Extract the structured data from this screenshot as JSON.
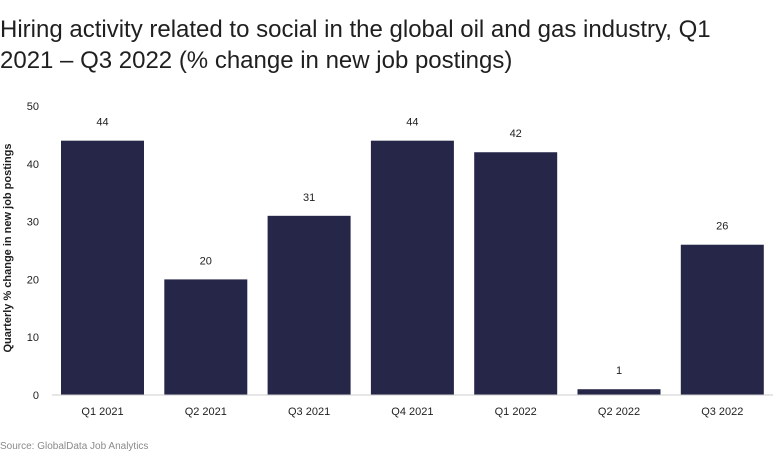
{
  "title": "Hiring activity related to social in the global oil and gas industry, Q1 2021 – Q3 2022 (% change in new job postings)",
  "source": "Source: GlobalData Job Analytics",
  "colors": {
    "bar": "#262649",
    "text": "#1f1f1f",
    "axis": "#cccccc"
  },
  "chart_data": {
    "type": "bar",
    "categories": [
      "Q1 2021",
      "Q2 2021",
      "Q3 2021",
      "Q4 2021",
      "Q1 2022",
      "Q2 2022",
      "Q3 2022"
    ],
    "values": [
      44,
      20,
      31,
      44,
      42,
      1,
      26
    ],
    "data_labels": [
      "44",
      "20",
      "31",
      "44",
      "42",
      "1",
      "26"
    ],
    "ylabel": "Quarterly % change in new job postings",
    "xlabel": "",
    "ylim": [
      0,
      50
    ],
    "yticks": [
      0,
      10,
      20,
      30,
      40,
      50
    ],
    "grid": false,
    "legend": "none"
  }
}
